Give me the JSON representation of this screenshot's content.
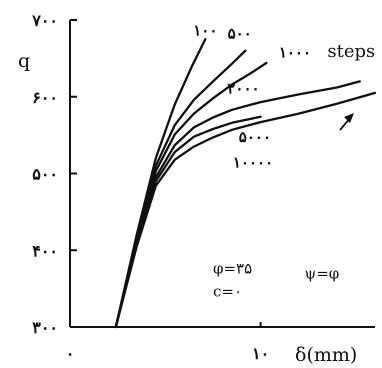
{
  "chart_data": {
    "type": "line",
    "ylabel": "q",
    "xlabel": "δ(mm)",
    "ylim": [
      300,
      700
    ],
    "xlim": [
      0,
      16
    ],
    "y_ticks": [
      {
        "value": 300,
        "label": "۳۰۰"
      },
      {
        "value": 400,
        "label": "۴۰۰"
      },
      {
        "value": 500,
        "label": "۵۰۰"
      },
      {
        "value": 600,
        "label": "۶۰۰"
      },
      {
        "value": 700,
        "label": "۷۰۰"
      }
    ],
    "x_ticks": [
      {
        "value": 0,
        "label": "۰"
      },
      {
        "value": 10,
        "label": "۱۰"
      }
    ],
    "series": [
      {
        "name": "۱۰۰",
        "label_pos": [
          7.1,
          680
        ],
        "x": [
          2.4,
          3.5,
          4.5,
          5.5,
          6.4,
          7.1
        ],
        "y": [
          300,
          420,
          520,
          590,
          640,
          675
        ]
      },
      {
        "name": "۵۰۰",
        "label_pos": [
          8.9,
          676
        ],
        "x": [
          2.4,
          3.5,
          4.5,
          5.5,
          6.5,
          7.5,
          8.5,
          9.2
        ],
        "y": [
          300,
          415,
          510,
          563,
          596,
          620,
          643,
          660
        ]
      },
      {
        "name": "۱۰۰۰",
        "label_pos": [
          11.8,
          651
        ],
        "x": [
          2.4,
          3.5,
          4.5,
          5.5,
          6.5,
          7.5,
          8.5,
          9.5,
          10.3
        ],
        "y": [
          300,
          412,
          503,
          551,
          578,
          598,
          616,
          631,
          644
        ]
      },
      {
        "name": "۲۰۰۰",
        "label_pos": [
          9.1,
          604
        ],
        "x": [
          2.4,
          3.5,
          4.5,
          5.5,
          6.5,
          7.5,
          8.5,
          10,
          12,
          14,
          15.2
        ],
        "y": [
          300,
          410,
          495,
          537,
          560,
          573,
          583,
          593,
          603,
          612,
          620
        ]
      },
      {
        "name": "۵۰۰۰",
        "label_pos": [
          9.7,
          541
        ],
        "x": [
          2.4,
          3.5,
          4.5,
          5.5,
          6.5,
          7.5,
          8.5,
          10
        ],
        "y": [
          300,
          408,
          490,
          528,
          548,
          558,
          566,
          574
        ]
      },
      {
        "name": "۱۰۰۰۰",
        "label_pos": [
          9.6,
          508
        ],
        "x": [
          2.4,
          3.5,
          4.5,
          5.5,
          6.5,
          7.5,
          8.5,
          10,
          12,
          14,
          16
        ],
        "y": [
          300,
          405,
          484,
          518,
          535,
          547,
          557,
          567,
          578,
          591,
          605
        ]
      }
    ],
    "annotations": [
      {
        "text": "steps",
        "pos": [
          13.5,
          652
        ]
      },
      {
        "text": "φ=۳۵",
        "pos": [
          7.5,
          370
        ]
      },
      {
        "text": "c=۰",
        "pos": [
          7.5,
          340
        ]
      },
      {
        "text": "ψ=φ",
        "pos": [
          12.3,
          363
        ]
      }
    ]
  }
}
